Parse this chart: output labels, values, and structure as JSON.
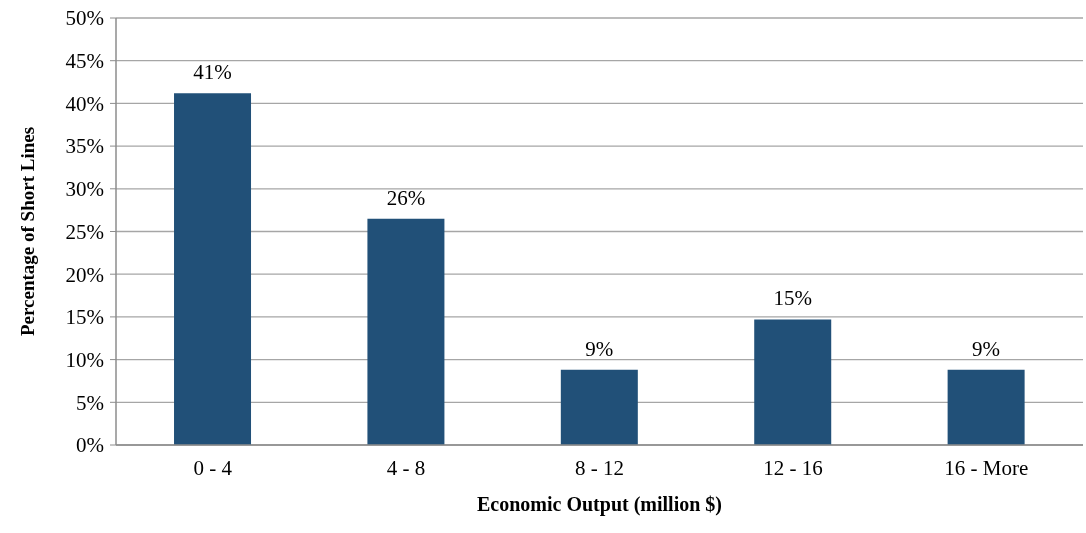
{
  "chart_data": {
    "type": "bar",
    "xlabel": "Economic Output (million $)",
    "ylabel": "Percentage of Short Lines",
    "categories": [
      "0 - 4",
      "4 - 8",
      "8 - 12",
      "12 - 16",
      "16 - More"
    ],
    "values": [
      41.2,
      26.5,
      8.8,
      14.7,
      8.8
    ],
    "value_labels": [
      "41%",
      "26%",
      "9%",
      "15%",
      "9%"
    ],
    "color": "#215078",
    "ylim": [
      0,
      50
    ],
    "yticks": [
      {
        "value": 0,
        "label": "0%"
      },
      {
        "value": 5,
        "label": "5%"
      },
      {
        "value": 10,
        "label": "10%"
      },
      {
        "value": 15,
        "label": "15%"
      },
      {
        "value": 20,
        "label": "20%"
      },
      {
        "value": 25,
        "label": "25%"
      },
      {
        "value": 30,
        "label": "30%"
      },
      {
        "value": 35,
        "label": "35%"
      },
      {
        "value": 40,
        "label": "40%"
      },
      {
        "value": 45,
        "label": "45%"
      },
      {
        "value": 50,
        "label": "50%"
      }
    ],
    "grid": "y"
  }
}
